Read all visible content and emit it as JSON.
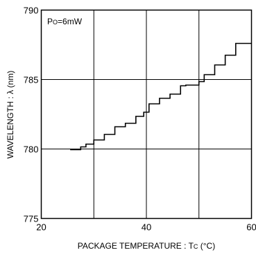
{
  "chart_data": {
    "type": "line",
    "annotation": {
      "main": "P",
      "sub": "O",
      "rest": "=6mW"
    },
    "xlabel": {
      "main": "PACKAGE TEMPERATURE : T",
      "sub": "C",
      "rest": " (°C)"
    },
    "ylabel": "WAVELENGTH : λ (nm)",
    "xlim": [
      20,
      60
    ],
    "ylim": [
      775,
      790
    ],
    "xticks": [
      20,
      40,
      60
    ],
    "yticks": [
      775,
      780,
      785,
      790
    ],
    "grid": true,
    "series": [
      {
        "step": "post",
        "x": [
          25.5,
          27.5,
          28.5,
          30.0,
          32.0,
          34.0,
          36.0,
          38.0,
          39.5,
          40.5,
          42.5,
          44.5,
          46.5,
          47.5,
          50.0,
          51.0,
          53.0,
          55.0,
          57.0,
          60.0
        ],
        "y": [
          779.95,
          780.15,
          780.35,
          780.65,
          781.05,
          781.6,
          781.85,
          782.35,
          782.65,
          783.25,
          783.65,
          783.95,
          784.55,
          784.6,
          784.85,
          785.35,
          786.05,
          786.75,
          787.6,
          787.6
        ]
      }
    ]
  }
}
